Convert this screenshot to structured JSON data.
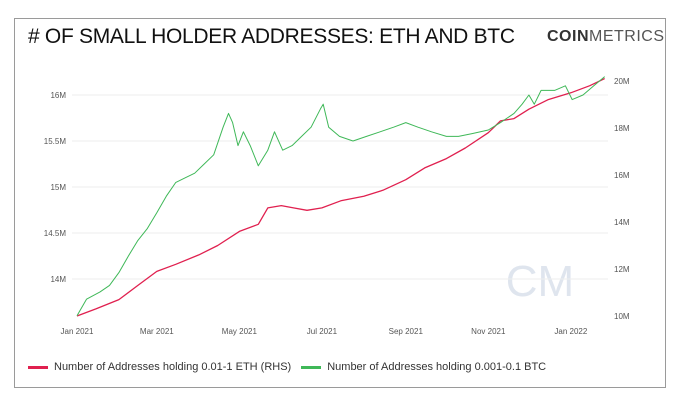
{
  "title": "# OF SMALL HOLDER ADDRESSES: ETH AND BTC",
  "logo": {
    "bold": "COIN",
    "light": "METRICS",
    "watermark": "CM"
  },
  "chart_data": {
    "type": "line",
    "title": "# OF SMALL HOLDER ADDRESSES: ETH AND BTC",
    "x_ticks": [
      {
        "date": "2021-01-01",
        "label": "Jan 2021"
      },
      {
        "date": "2021-03-01",
        "label": "Mar 2021"
      },
      {
        "date": "2021-05-01",
        "label": "May 2021"
      },
      {
        "date": "2021-07-01",
        "label": "Jul 2021"
      },
      {
        "date": "2021-09-01",
        "label": "Sep 2021"
      },
      {
        "date": "2021-11-01",
        "label": "Nov 2021"
      },
      {
        "date": "2022-01-01",
        "label": "Jan 2022"
      }
    ],
    "y_left": {
      "ticks": [
        {
          "v": 14,
          "label": "14M"
        },
        {
          "v": 14.5,
          "label": "14.5M"
        },
        {
          "v": 15,
          "label": "15M"
        },
        {
          "v": 15.5,
          "label": "15.5M"
        },
        {
          "v": 16,
          "label": "16M"
        }
      ],
      "unit": "millions"
    },
    "y_right": {
      "ticks": [
        {
          "v": 10,
          "label": "10M"
        },
        {
          "v": 12,
          "label": "12M"
        },
        {
          "v": 14,
          "label": "14M"
        },
        {
          "v": 16,
          "label": "16M"
        },
        {
          "v": 18,
          "label": "18M"
        },
        {
          "v": 20,
          "label": "20M"
        }
      ],
      "unit": "millions"
    },
    "grid": true,
    "legend_position": "bottom-left",
    "series": [
      {
        "name": "Number of Addresses holding 0.01-1 ETH (RHS)",
        "axis": "right",
        "color": "#e0204f",
        "points": [
          [
            "2021-01-01",
            10.0
          ],
          [
            "2021-01-15",
            10.3
          ],
          [
            "2021-02-01",
            10.7
          ],
          [
            "2021-02-15",
            11.3
          ],
          [
            "2021-03-01",
            11.9
          ],
          [
            "2021-03-15",
            12.2
          ],
          [
            "2021-04-01",
            12.6
          ],
          [
            "2021-04-15",
            13.0
          ],
          [
            "2021-05-01",
            13.6
          ],
          [
            "2021-05-15",
            13.9
          ],
          [
            "2021-05-22",
            14.6
          ],
          [
            "2021-06-01",
            14.7
          ],
          [
            "2021-06-10",
            14.6
          ],
          [
            "2021-06-20",
            14.5
          ],
          [
            "2021-07-01",
            14.6
          ],
          [
            "2021-07-15",
            14.9
          ],
          [
            "2021-08-01",
            15.1
          ],
          [
            "2021-08-15",
            15.35
          ],
          [
            "2021-09-01",
            15.8
          ],
          [
            "2021-09-15",
            16.3
          ],
          [
            "2021-10-01",
            16.7
          ],
          [
            "2021-10-15",
            17.15
          ],
          [
            "2021-11-01",
            17.8
          ],
          [
            "2021-11-10",
            18.3
          ],
          [
            "2021-11-20",
            18.4
          ],
          [
            "2021-12-01",
            18.8
          ],
          [
            "2021-12-15",
            19.2
          ],
          [
            "2022-01-01",
            19.5
          ],
          [
            "2022-01-15",
            19.8
          ],
          [
            "2022-01-26",
            20.1
          ]
        ]
      },
      {
        "name": "Number of Addresses holding 0.001-0.1 BTC",
        "axis": "left",
        "color": "#3fb858",
        "points": [
          [
            "2021-01-01",
            13.6
          ],
          [
            "2021-01-08",
            13.78
          ],
          [
            "2021-01-18",
            13.86
          ],
          [
            "2021-01-25",
            13.93
          ],
          [
            "2021-02-01",
            14.07
          ],
          [
            "2021-02-08",
            14.25
          ],
          [
            "2021-02-15",
            14.42
          ],
          [
            "2021-02-22",
            14.55
          ],
          [
            "2021-03-01",
            14.72
          ],
          [
            "2021-03-08",
            14.9
          ],
          [
            "2021-03-15",
            15.05
          ],
          [
            "2021-03-22",
            15.1
          ],
          [
            "2021-03-29",
            15.15
          ],
          [
            "2021-04-05",
            15.25
          ],
          [
            "2021-04-12",
            15.35
          ],
          [
            "2021-04-19",
            15.65
          ],
          [
            "2021-04-23",
            15.8
          ],
          [
            "2021-04-26",
            15.7
          ],
          [
            "2021-04-30",
            15.45
          ],
          [
            "2021-05-04",
            15.6
          ],
          [
            "2021-05-09",
            15.45
          ],
          [
            "2021-05-15",
            15.23
          ],
          [
            "2021-05-22",
            15.4
          ],
          [
            "2021-05-27",
            15.6
          ],
          [
            "2021-06-02",
            15.4
          ],
          [
            "2021-06-09",
            15.45
          ],
          [
            "2021-06-16",
            15.55
          ],
          [
            "2021-06-23",
            15.65
          ],
          [
            "2021-06-30",
            15.85
          ],
          [
            "2021-07-02",
            15.9
          ],
          [
            "2021-07-06",
            15.65
          ],
          [
            "2021-07-14",
            15.55
          ],
          [
            "2021-07-24",
            15.5
          ],
          [
            "2021-08-03",
            15.55
          ],
          [
            "2021-08-13",
            15.6
          ],
          [
            "2021-08-23",
            15.65
          ],
          [
            "2021-09-01",
            15.7
          ],
          [
            "2021-09-10",
            15.65
          ],
          [
            "2021-09-20",
            15.6
          ],
          [
            "2021-10-01",
            15.55
          ],
          [
            "2021-10-10",
            15.55
          ],
          [
            "2021-10-20",
            15.58
          ],
          [
            "2021-11-01",
            15.62
          ],
          [
            "2021-11-10",
            15.7
          ],
          [
            "2021-11-20",
            15.8
          ],
          [
            "2021-11-26",
            15.9
          ],
          [
            "2021-12-01",
            16.0
          ],
          [
            "2021-12-05",
            15.9
          ],
          [
            "2021-12-10",
            16.05
          ],
          [
            "2021-12-20",
            16.05
          ],
          [
            "2021-12-28",
            16.1
          ],
          [
            "2022-01-02",
            15.95
          ],
          [
            "2022-01-10",
            16.0
          ],
          [
            "2022-01-18",
            16.1
          ],
          [
            "2022-01-26",
            16.2
          ]
        ]
      }
    ]
  }
}
